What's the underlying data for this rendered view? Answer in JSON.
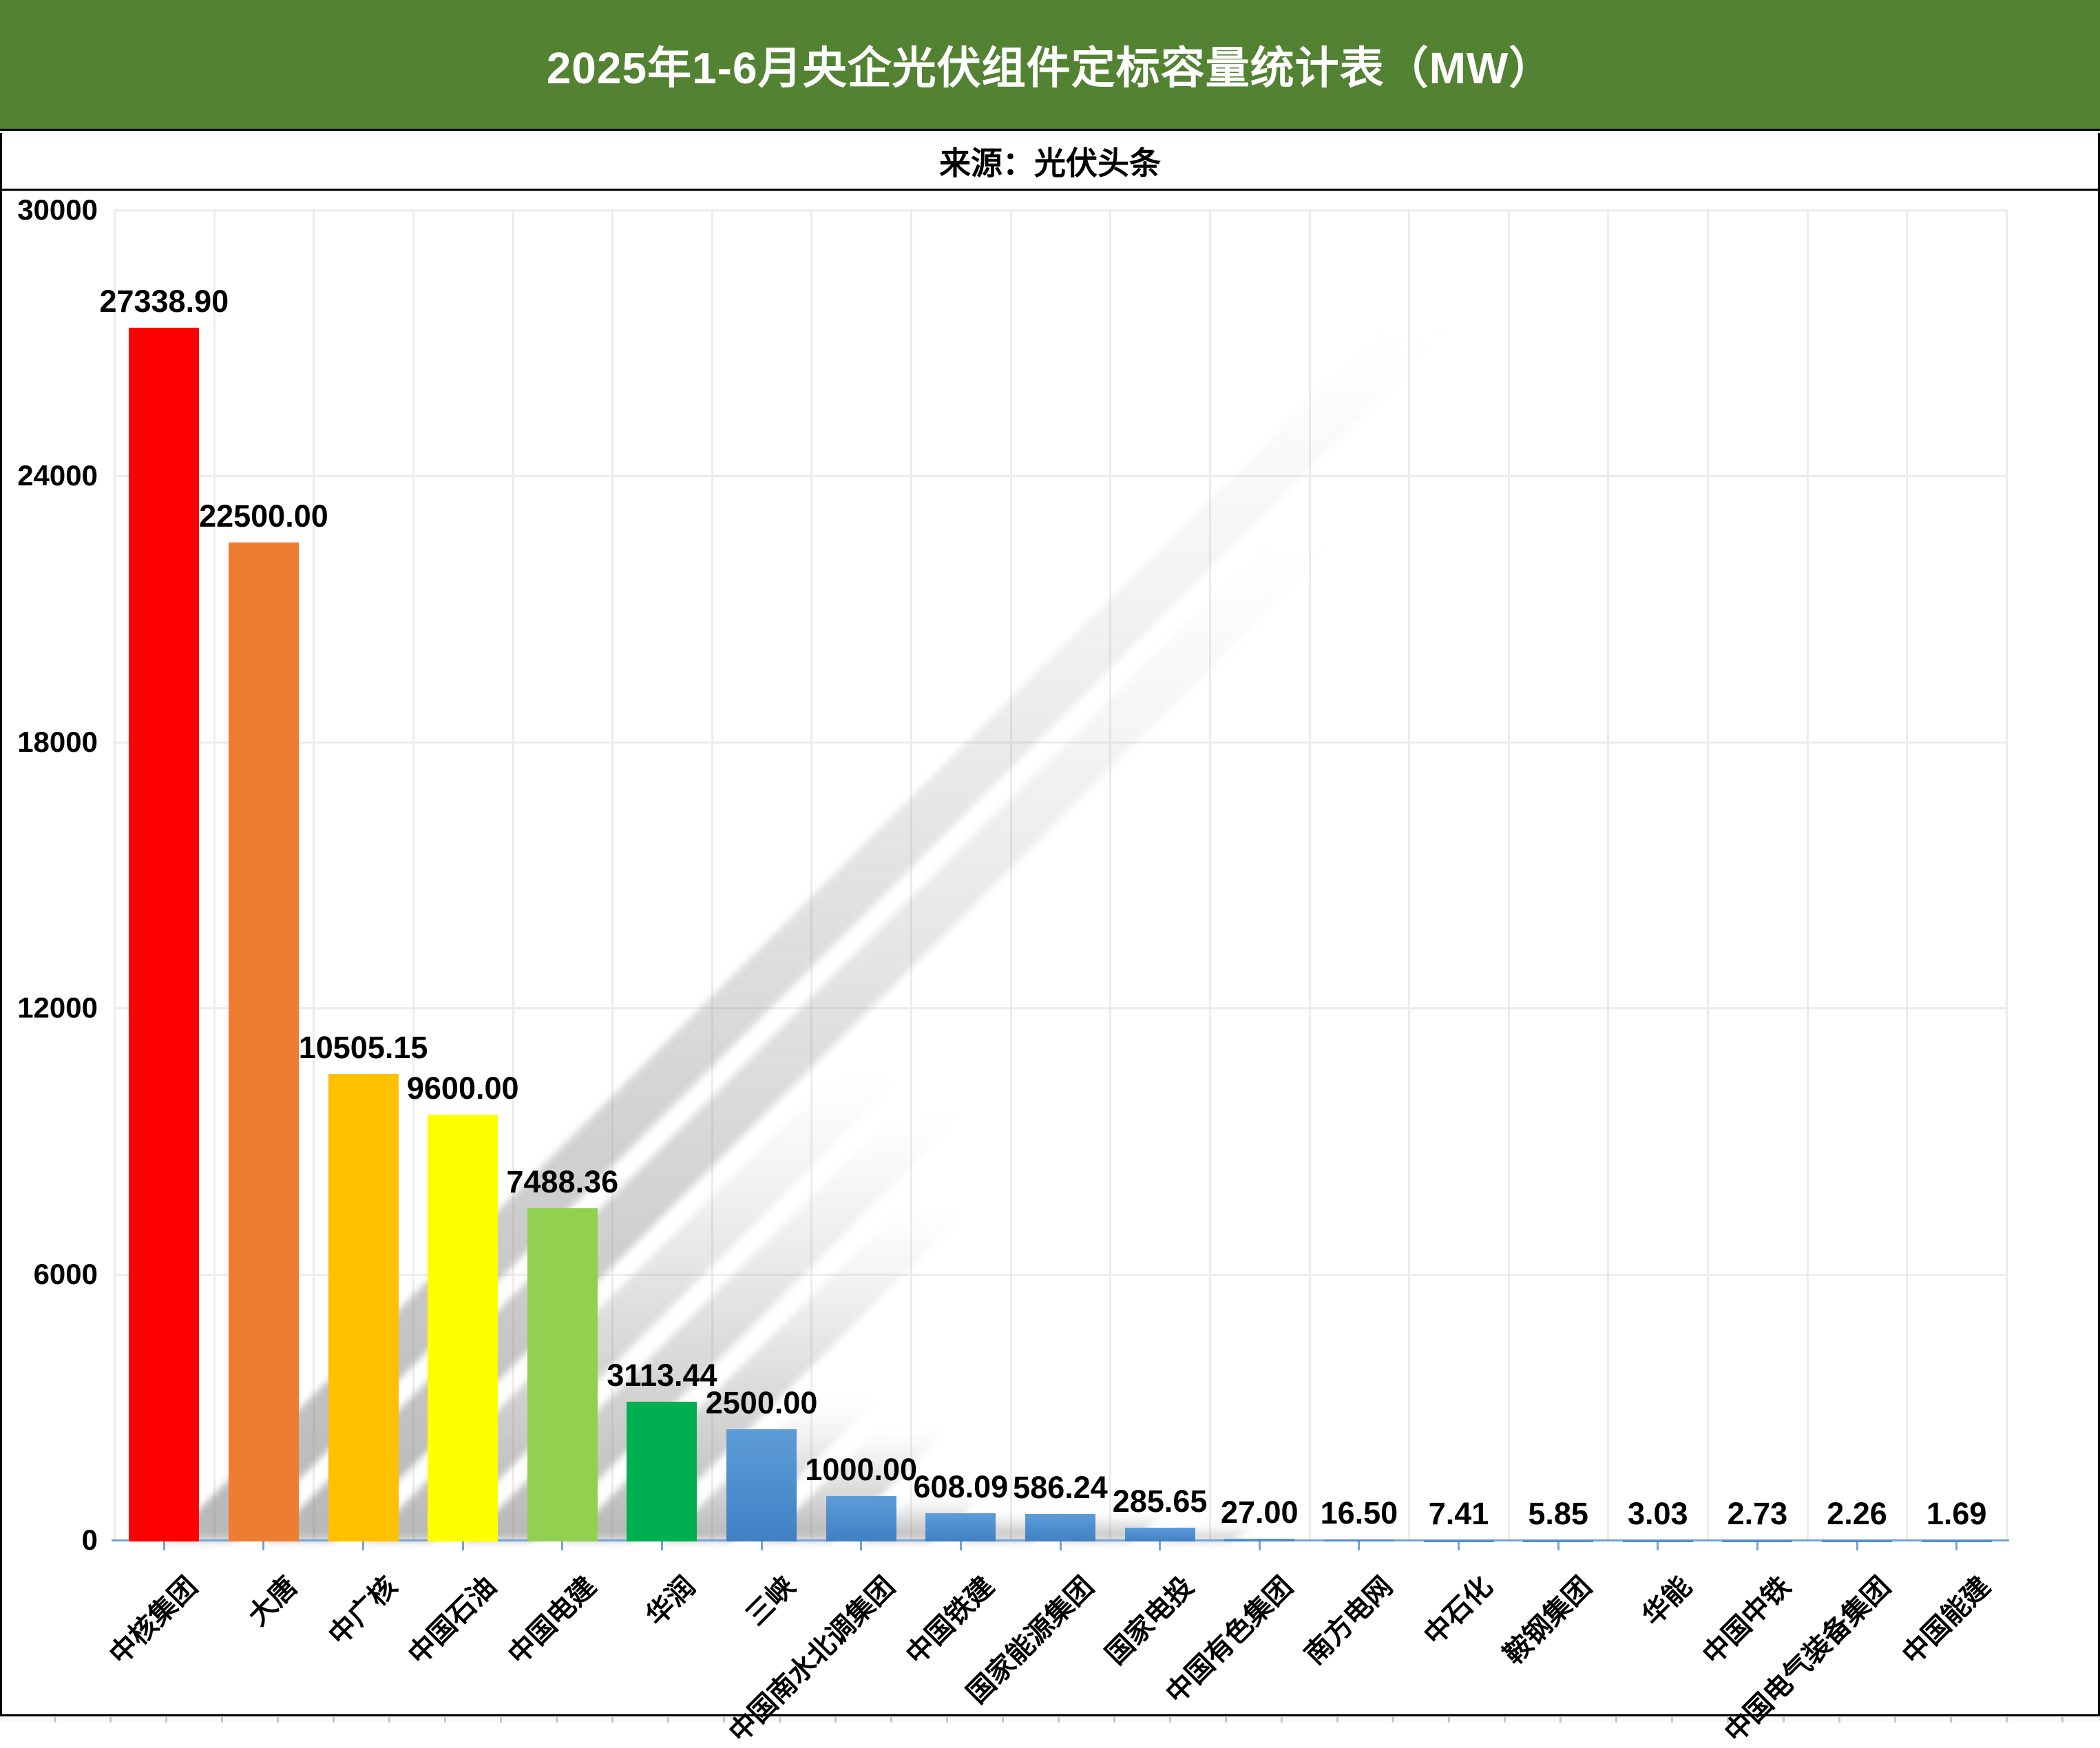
{
  "header": {
    "title": "2025年1-6月央企光伏组件定标容量统计表（MW）",
    "bg_color": "#528232",
    "text_color": "#FFFFFF"
  },
  "source_row": {
    "text": "来源：光伏头条"
  },
  "chart_data": {
    "type": "bar",
    "title": "2025年1-6月央企光伏组件定标容量统计表（MW）",
    "source": "光伏头条",
    "categories": [
      "中核集团",
      "大唐",
      "中广核",
      "中国石油",
      "中国电建",
      "华润",
      "三峡",
      "中国南水北调集团",
      "中国铁建",
      "国家能源集团",
      "国家电投",
      "中国有色集团",
      "南方电网",
      "中石化",
      "鞍钢集团",
      "华能",
      "中国中铁",
      "中国电气装备集团",
      "中国能建"
    ],
    "values": [
      27338.9,
      22500.0,
      10505.15,
      9600.0,
      7488.36,
      3113.44,
      2500.0,
      1000.0,
      608.09,
      586.24,
      285.65,
      27.0,
      16.5,
      7.41,
      5.85,
      3.03,
      2.73,
      2.26,
      1.69
    ],
    "value_labels": [
      "27338.90",
      "22500.00",
      "10505.15",
      "9600.00",
      "7488.36",
      "3113.44",
      "2500.00",
      "1000.00",
      "608.09",
      "586.24",
      "285.65",
      "27.00",
      "16.50",
      "7.41",
      "5.85",
      "3.03",
      "2.73",
      "2.26",
      "1.69"
    ],
    "bar_colors": [
      "#FF0000",
      "#ED7D31",
      "#FFC000",
      "#FFFF00",
      "#92D050",
      "#00B050",
      "gradient",
      "gradient",
      "gradient",
      "gradient",
      "gradient",
      "gradient",
      "gradient",
      "gradient",
      "gradient",
      "gradient",
      "gradient",
      "gradient",
      "gradient"
    ],
    "blue_gradient": [
      "#5E9CD8",
      "#4080C4"
    ],
    "xlabel": "",
    "ylabel": "",
    "ylim": [
      0,
      30000
    ],
    "yticks": [
      0,
      6000,
      12000,
      18000,
      24000,
      30000
    ],
    "ytick_labels": [
      "0",
      "6000",
      "12000",
      "18000",
      "24000",
      "30000"
    ],
    "grid": true,
    "legend": false,
    "bar_label_position": "above",
    "shadow_style": "perspective-upper-right",
    "axis_color": "#74A3D4",
    "gridline_color": "#ECECEC"
  }
}
